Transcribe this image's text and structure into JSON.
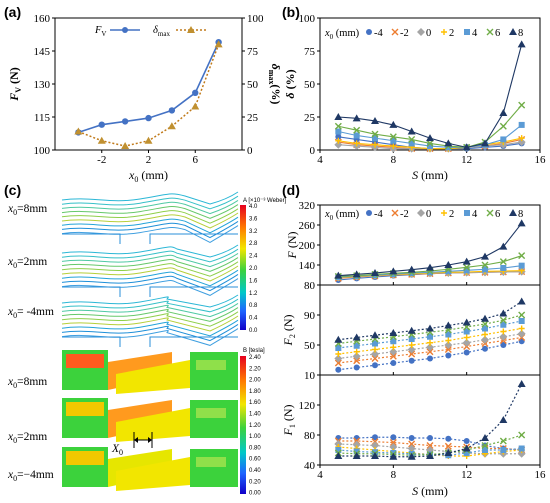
{
  "panels": {
    "a": "(a)",
    "b": "(b)",
    "c": "(c)",
    "d": "(d)"
  },
  "x0_values": [
    -4,
    -2,
    0,
    2,
    4,
    6,
    8
  ],
  "series_colors": [
    "#4472c4",
    "#ed7d31",
    "#a5a5a5",
    "#ffc000",
    "#5b9bd5",
    "#70ad47",
    "#1f3864"
  ],
  "series_markers": [
    "circle",
    "x",
    "diamond",
    "plus",
    "square",
    "x",
    "triangle"
  ],
  "legend_prefix": "x0 (mm)",
  "legend_labels": [
    "-4",
    "-2",
    "0",
    "2",
    "4",
    "6",
    "8"
  ],
  "chart_data": [
    {
      "id": "a",
      "type": "line",
      "xlabel": "x0 (mm)",
      "ylabel_left": "FV (N)",
      "ylabel_right": "δmax(%)",
      "xlim": [
        -6,
        10
      ],
      "xticks": [
        "-2",
        "2",
        "6"
      ],
      "ylim_left": [
        100,
        160
      ],
      "yticks_left": [
        "100",
        "115",
        "130",
        "145",
        "160"
      ],
      "ylim_right": [
        0,
        100
      ],
      "yticks_right": [
        "0",
        "25",
        "50",
        "75",
        "100"
      ],
      "series": [
        {
          "name": "FV",
          "axis": "left",
          "x": [
            -4,
            -2,
            0,
            2,
            4,
            6,
            8
          ],
          "y": [
            108,
            111.5,
            113,
            114.5,
            118,
            126,
            149
          ]
        },
        {
          "name": "δmax",
          "axis": "right",
          "x": [
            -4,
            -2,
            0,
            2,
            4,
            6,
            8
          ],
          "y": [
            14,
            7,
            3,
            7,
            18,
            33,
            80
          ]
        }
      ],
      "legend": [
        "FV",
        "δmax"
      ]
    },
    {
      "id": "b",
      "type": "line",
      "xlabel": "S (mm)",
      "ylabel": "δ (%)",
      "xlim": [
        4,
        16
      ],
      "xticks": [
        "4",
        "8",
        "12",
        "16"
      ],
      "ylim": [
        0,
        100
      ],
      "yticks": [
        "0",
        "25",
        "50",
        "75",
        "100"
      ],
      "x": [
        5,
        6,
        7,
        8,
        9,
        10,
        11,
        12,
        13,
        14,
        15
      ],
      "series": [
        {
          "name": "-4",
          "y": [
            10,
            8,
            6,
            4,
            2,
            1,
            1,
            1,
            2,
            3,
            5
          ]
        },
        {
          "name": "-2",
          "y": [
            6,
            4,
            3,
            2,
            1,
            1,
            1,
            2,
            3,
            5,
            8
          ]
        },
        {
          "name": "0",
          "y": [
            4,
            3,
            2,
            1,
            1,
            1,
            1,
            2,
            3,
            4,
            6
          ]
        },
        {
          "name": "2",
          "y": [
            7,
            5,
            4,
            3,
            2,
            1,
            1,
            2,
            4,
            6,
            9
          ]
        },
        {
          "name": "4",
          "y": [
            14,
            11,
            9,
            7,
            5,
            3,
            2,
            2,
            4,
            8,
            19
          ]
        },
        {
          "name": "6",
          "y": [
            18,
            15,
            12,
            10,
            8,
            5,
            3,
            2,
            6,
            18,
            34
          ]
        },
        {
          "name": "8",
          "y": [
            25,
            24,
            22,
            19,
            14,
            9,
            5,
            2,
            5,
            28,
            80
          ]
        }
      ]
    },
    {
      "id": "d1",
      "type": "line",
      "ylabel": "F (N)",
      "xlim": [
        4,
        16
      ],
      "ylim": [
        80,
        320
      ],
      "yticks": [
        "80",
        "140",
        "200",
        "260",
        "320"
      ],
      "x": [
        5,
        6,
        7,
        8,
        9,
        10,
        11,
        12,
        13,
        14,
        15
      ],
      "series": [
        {
          "name": "-4",
          "y": [
            95,
            100,
            104,
            108,
            111,
            114,
            116,
            118,
            119,
            120,
            121
          ]
        },
        {
          "name": "-2",
          "y": [
            100,
            104,
            107,
            110,
            112,
            114,
            116,
            117,
            118,
            119,
            120
          ]
        },
        {
          "name": "0",
          "y": [
            102,
            105,
            108,
            111,
            113,
            115,
            116,
            117,
            118,
            119,
            120
          ]
        },
        {
          "name": "2",
          "y": [
            103,
            106,
            109,
            112,
            114,
            116,
            118,
            119,
            121,
            122,
            123
          ]
        },
        {
          "name": "4",
          "y": [
            104,
            107,
            110,
            113,
            116,
            118,
            121,
            124,
            127,
            131,
            138
          ]
        },
        {
          "name": "6",
          "y": [
            106,
            108,
            112,
            115,
            118,
            122,
            127,
            133,
            140,
            150,
            168
          ]
        },
        {
          "name": "8",
          "y": [
            108,
            112,
            116,
            121,
            126,
            132,
            140,
            150,
            165,
            195,
            265
          ]
        }
      ]
    },
    {
      "id": "d2",
      "type": "line",
      "ylabel": "F2 (N)",
      "xlim": [
        4,
        16
      ],
      "ylim": [
        10,
        130
      ],
      "yticks": [
        "10",
        "50",
        "90"
      ],
      "x": [
        5,
        6,
        7,
        8,
        9,
        10,
        11,
        12,
        13,
        14,
        15
      ],
      "series": [
        {
          "name": "-4",
          "y": [
            17,
            20,
            23,
            26,
            29,
            32,
            36,
            40,
            45,
            50,
            55
          ]
        },
        {
          "name": "-2",
          "y": [
            26,
            29,
            32,
            35,
            38,
            41,
            44,
            48,
            52,
            56,
            60
          ]
        },
        {
          "name": "0",
          "y": [
            32,
            35,
            38,
            41,
            44,
            47,
            50,
            53,
            57,
            61,
            65
          ]
        },
        {
          "name": "2",
          "y": [
            38,
            41,
            44,
            47,
            50,
            53,
            56,
            60,
            64,
            68,
            72
          ]
        },
        {
          "name": "4",
          "y": [
            46,
            49,
            52,
            55,
            58,
            61,
            64,
            68,
            72,
            77,
            82
          ]
        },
        {
          "name": "6",
          "y": [
            52,
            55,
            58,
            61,
            64,
            67,
            70,
            74,
            78,
            83,
            90
          ]
        },
        {
          "name": "8",
          "y": [
            57,
            60,
            63,
            66,
            69,
            72,
            76,
            80,
            85,
            92,
            108
          ]
        }
      ]
    },
    {
      "id": "d3",
      "type": "line",
      "ylabel": "F1 (N)",
      "xlabel": "S (mm)",
      "xlim": [
        4,
        16
      ],
      "xticks": [
        "4",
        "8",
        "12",
        "16"
      ],
      "ylim": [
        40,
        160
      ],
      "yticks": [
        "40",
        "80",
        "120"
      ],
      "x": [
        5,
        6,
        7,
        8,
        9,
        10,
        11,
        12,
        13,
        14,
        15
      ],
      "series": [
        {
          "name": "-4",
          "y": [
            76,
            76,
            77,
            77,
            76,
            76,
            75,
            72,
            66,
            62,
            60
          ]
        },
        {
          "name": "-2",
          "y": [
            72,
            72,
            71,
            70,
            68,
            66,
            65,
            64,
            62,
            62,
            60
          ]
        },
        {
          "name": "0",
          "y": [
            68,
            67,
            66,
            64,
            62,
            60,
            58,
            56,
            55,
            55,
            55
          ]
        },
        {
          "name": "2",
          "y": [
            64,
            62,
            60,
            58,
            56,
            54,
            52,
            52,
            55,
            58,
            60
          ]
        },
        {
          "name": "4",
          "y": [
            60,
            58,
            57,
            56,
            55,
            54,
            53,
            56,
            60,
            60,
            62
          ]
        },
        {
          "name": "6",
          "y": [
            56,
            55,
            55,
            54,
            53,
            54,
            56,
            60,
            66,
            72,
            80
          ]
        },
        {
          "name": "8",
          "y": [
            52,
            52,
            52,
            51,
            51,
            52,
            56,
            62,
            76,
            100,
            148
          ]
        }
      ]
    }
  ],
  "c_panel": {
    "flux_title": "A [×10⁻³ Weber]",
    "flux_ticks": [
      "4.0",
      "3.6",
      "3.2",
      "2.8",
      "2.4",
      "2.0",
      "1.6",
      "1.2",
      "0.8",
      "0.4",
      "0.0"
    ],
    "b_title": "B [tesla]",
    "b_ticks": [
      "2.40",
      "2.20",
      "2.00",
      "1.80",
      "1.60",
      "1.40",
      "1.20",
      "1.00",
      "0.80",
      "0.60",
      "0.40",
      "0.20",
      "0.00"
    ],
    "row_labels": [
      "x0=8mm",
      "x0=2mm",
      "x0= -4mm",
      "x0=8mm",
      "x0=2mm",
      "x0=−4mm"
    ],
    "x0_marker": "x0"
  }
}
